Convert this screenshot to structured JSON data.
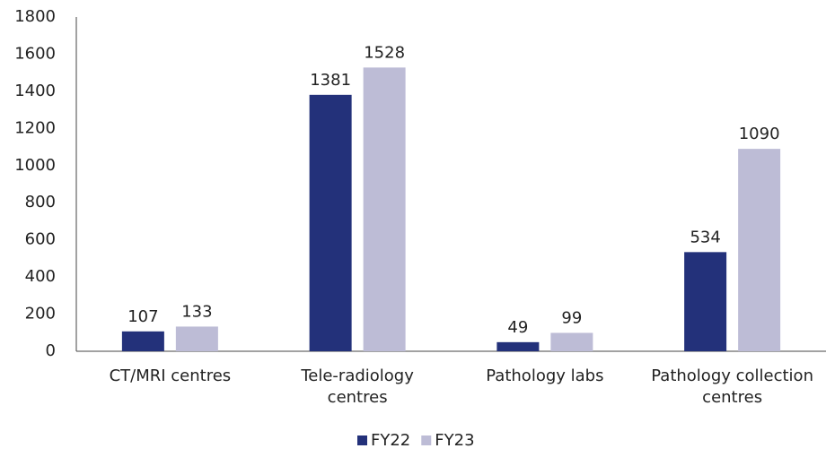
{
  "chart_data": {
    "type": "bar",
    "categories": [
      "CT/MRI centres",
      "Tele-radiology centres",
      "Pathology labs",
      "Pathology collection centres"
    ],
    "series": [
      {
        "name": "FY22",
        "color": "#23317a",
        "values": [
          107,
          1381,
          49,
          534
        ]
      },
      {
        "name": "FY23",
        "color": "#bdbcd6",
        "values": [
          133,
          1528,
          99,
          1090
        ]
      }
    ],
    "ylim": [
      0,
      1800
    ],
    "yticks": [
      0,
      200,
      400,
      600,
      800,
      1000,
      1200,
      1400,
      1600,
      1800
    ],
    "grid": false,
    "legend": "bottom"
  }
}
